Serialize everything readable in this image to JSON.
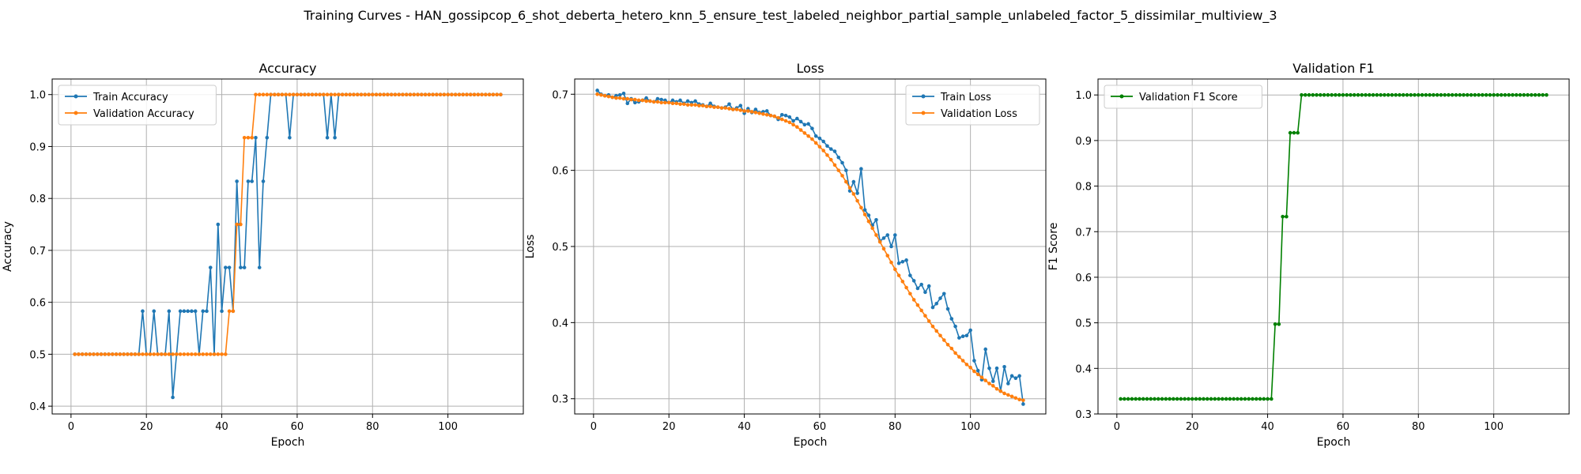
{
  "figure": {
    "suptitle": "Training Curves - HAN_gossipcop_6_shot_deberta_hetero_knn_5_ensure_test_labeled_neighbor_partial_sample_unlabeled_factor_5_dissimilar_multiview_3"
  },
  "colors": {
    "train": "#1f77b4",
    "validation": "#ff7f0e",
    "f1": "#008000",
    "grid": "#b0b0b0"
  },
  "chart_data": [
    {
      "type": "line",
      "title": "Accuracy",
      "xlabel": "Epoch",
      "ylabel": "Accuracy",
      "xlim": [
        -5,
        120
      ],
      "ylim": [
        0.385,
        1.03
      ],
      "xticks": [
        0,
        20,
        40,
        60,
        80,
        100
      ],
      "yticks": [
        0.4,
        0.5,
        0.6,
        0.7,
        0.8,
        0.9,
        1.0
      ],
      "grid": true,
      "legend": "upper-left",
      "x": [
        1,
        2,
        3,
        4,
        5,
        6,
        7,
        8,
        9,
        10,
        11,
        12,
        13,
        14,
        15,
        16,
        17,
        18,
        19,
        20,
        21,
        22,
        23,
        24,
        25,
        26,
        27,
        28,
        29,
        30,
        31,
        32,
        33,
        34,
        35,
        36,
        37,
        38,
        39,
        40,
        41,
        42,
        43,
        44,
        45,
        46,
        47,
        48,
        49,
        50,
        51,
        52,
        53,
        54,
        55,
        56,
        57,
        58,
        59,
        60,
        61,
        62,
        63,
        64,
        65,
        66,
        67,
        68,
        69,
        70,
        71,
        72,
        73,
        74,
        75,
        76,
        77,
        78,
        79,
        80,
        81,
        82,
        83,
        84,
        85,
        86,
        87,
        88,
        89,
        90,
        91,
        92,
        93,
        94,
        95,
        96,
        97,
        98,
        99,
        100,
        101,
        102,
        103,
        104,
        105,
        106,
        107,
        108,
        109,
        110,
        111,
        112,
        113,
        114
      ],
      "series": [
        {
          "name": "Train Accuracy",
          "color": "#1f77b4",
          "values": [
            0.5,
            0.5,
            0.5,
            0.5,
            0.5,
            0.5,
            0.5,
            0.5,
            0.5,
            0.5,
            0.5,
            0.5,
            0.5,
            0.5,
            0.5,
            0.5,
            0.5,
            0.5,
            0.583,
            0.5,
            0.5,
            0.583,
            0.5,
            0.5,
            0.5,
            0.583,
            0.417,
            0.5,
            0.583,
            0.583,
            0.583,
            0.583,
            0.583,
            0.5,
            0.583,
            0.583,
            0.667,
            0.5,
            0.75,
            0.583,
            0.667,
            0.667,
            0.583,
            0.833,
            0.667,
            0.667,
            0.833,
            0.833,
            0.917,
            0.667,
            0.833,
            0.917,
            1.0,
            1.0,
            1.0,
            1.0,
            1.0,
            0.917,
            1.0,
            1.0,
            1.0,
            1.0,
            1.0,
            1.0,
            1.0,
            1.0,
            1.0,
            0.917,
            1.0,
            0.917,
            1.0,
            1.0,
            1.0,
            1.0,
            1.0,
            1.0,
            1.0,
            1.0,
            1.0,
            1.0,
            1.0,
            1.0,
            1.0,
            1.0,
            1.0,
            1.0,
            1.0,
            1.0,
            1.0,
            1.0,
            1.0,
            1.0,
            1.0,
            1.0,
            1.0,
            1.0,
            1.0,
            1.0,
            1.0,
            1.0,
            1.0,
            1.0,
            1.0,
            1.0,
            1.0,
            1.0,
            1.0,
            1.0,
            1.0,
            1.0,
            1.0,
            1.0,
            1.0,
            1.0
          ]
        },
        {
          "name": "Validation Accuracy",
          "color": "#ff7f0e",
          "values": [
            0.5,
            0.5,
            0.5,
            0.5,
            0.5,
            0.5,
            0.5,
            0.5,
            0.5,
            0.5,
            0.5,
            0.5,
            0.5,
            0.5,
            0.5,
            0.5,
            0.5,
            0.5,
            0.5,
            0.5,
            0.5,
            0.5,
            0.5,
            0.5,
            0.5,
            0.5,
            0.5,
            0.5,
            0.5,
            0.5,
            0.5,
            0.5,
            0.5,
            0.5,
            0.5,
            0.5,
            0.5,
            0.5,
            0.5,
            0.5,
            0.5,
            0.583,
            0.583,
            0.75,
            0.75,
            0.917,
            0.917,
            0.917,
            1.0,
            1.0,
            1.0,
            1.0,
            1.0,
            1.0,
            1.0,
            1.0,
            1.0,
            1.0,
            1.0,
            1.0,
            1.0,
            1.0,
            1.0,
            1.0,
            1.0,
            1.0,
            1.0,
            1.0,
            1.0,
            1.0,
            1.0,
            1.0,
            1.0,
            1.0,
            1.0,
            1.0,
            1.0,
            1.0,
            1.0,
            1.0,
            1.0,
            1.0,
            1.0,
            1.0,
            1.0,
            1.0,
            1.0,
            1.0,
            1.0,
            1.0,
            1.0,
            1.0,
            1.0,
            1.0,
            1.0,
            1.0,
            1.0,
            1.0,
            1.0,
            1.0,
            1.0,
            1.0,
            1.0,
            1.0,
            1.0,
            1.0,
            1.0,
            1.0,
            1.0,
            1.0,
            1.0,
            1.0,
            1.0,
            1.0
          ]
        }
      ]
    },
    {
      "type": "line",
      "title": "Loss",
      "xlabel": "Epoch",
      "ylabel": "Loss",
      "xlim": [
        -5,
        120
      ],
      "ylim": [
        0.28,
        0.72
      ],
      "xticks": [
        0,
        20,
        40,
        60,
        80,
        100
      ],
      "yticks": [
        0.3,
        0.4,
        0.5,
        0.6,
        0.7
      ],
      "grid": true,
      "legend": "upper-right",
      "x": [
        1,
        2,
        3,
        4,
        5,
        6,
        7,
        8,
        9,
        10,
        11,
        12,
        13,
        14,
        15,
        16,
        17,
        18,
        19,
        20,
        21,
        22,
        23,
        24,
        25,
        26,
        27,
        28,
        29,
        30,
        31,
        32,
        33,
        34,
        35,
        36,
        37,
        38,
        39,
        40,
        41,
        42,
        43,
        44,
        45,
        46,
        47,
        48,
        49,
        50,
        51,
        52,
        53,
        54,
        55,
        56,
        57,
        58,
        59,
        60,
        61,
        62,
        63,
        64,
        65,
        66,
        67,
        68,
        69,
        70,
        71,
        72,
        73,
        74,
        75,
        76,
        77,
        78,
        79,
        80,
        81,
        82,
        83,
        84,
        85,
        86,
        87,
        88,
        89,
        90,
        91,
        92,
        93,
        94,
        95,
        96,
        97,
        98,
        99,
        100,
        101,
        102,
        103,
        104,
        105,
        106,
        107,
        108,
        109,
        110,
        111,
        112,
        113,
        114
      ],
      "series": [
        {
          "name": "Train Loss",
          "color": "#1f77b4",
          "values": [
            0.705,
            0.7,
            0.698,
            0.699,
            0.696,
            0.698,
            0.699,
            0.701,
            0.688,
            0.694,
            0.689,
            0.69,
            0.692,
            0.695,
            0.691,
            0.69,
            0.694,
            0.693,
            0.692,
            0.689,
            0.692,
            0.69,
            0.692,
            0.688,
            0.691,
            0.689,
            0.691,
            0.687,
            0.686,
            0.684,
            0.688,
            0.684,
            0.683,
            0.682,
            0.683,
            0.687,
            0.68,
            0.682,
            0.685,
            0.675,
            0.681,
            0.676,
            0.68,
            0.676,
            0.677,
            0.678,
            0.672,
            0.671,
            0.667,
            0.673,
            0.672,
            0.67,
            0.665,
            0.668,
            0.664,
            0.66,
            0.661,
            0.655,
            0.645,
            0.642,
            0.638,
            0.632,
            0.628,
            0.625,
            0.617,
            0.61,
            0.6,
            0.573,
            0.585,
            0.57,
            0.602,
            0.548,
            0.541,
            0.528,
            0.535,
            0.507,
            0.511,
            0.515,
            0.5,
            0.515,
            0.478,
            0.48,
            0.482,
            0.462,
            0.455,
            0.445,
            0.45,
            0.44,
            0.448,
            0.42,
            0.425,
            0.432,
            0.438,
            0.418,
            0.405,
            0.395,
            0.38,
            0.382,
            0.383,
            0.39,
            0.35,
            0.337,
            0.325,
            0.365,
            0.34,
            0.323,
            0.34,
            0.31,
            0.342,
            0.32,
            0.33,
            0.327,
            0.33,
            0.293
          ]
        },
        {
          "name": "Validation Loss",
          "color": "#ff7f0e",
          "values": [
            0.7,
            0.699,
            0.698,
            0.697,
            0.696,
            0.695,
            0.695,
            0.694,
            0.694,
            0.693,
            0.693,
            0.692,
            0.692,
            0.691,
            0.691,
            0.69,
            0.69,
            0.689,
            0.689,
            0.689,
            0.688,
            0.688,
            0.687,
            0.687,
            0.686,
            0.686,
            0.686,
            0.685,
            0.685,
            0.684,
            0.684,
            0.683,
            0.683,
            0.682,
            0.682,
            0.681,
            0.68,
            0.68,
            0.679,
            0.678,
            0.678,
            0.677,
            0.676,
            0.675,
            0.674,
            0.673,
            0.672,
            0.671,
            0.669,
            0.667,
            0.665,
            0.663,
            0.66,
            0.657,
            0.653,
            0.649,
            0.645,
            0.641,
            0.636,
            0.631,
            0.626,
            0.62,
            0.614,
            0.607,
            0.6,
            0.593,
            0.585,
            0.577,
            0.569,
            0.56,
            0.551,
            0.542,
            0.533,
            0.524,
            0.515,
            0.506,
            0.497,
            0.488,
            0.479,
            0.47,
            0.462,
            0.454,
            0.446,
            0.438,
            0.43,
            0.423,
            0.416,
            0.409,
            0.402,
            0.395,
            0.389,
            0.383,
            0.377,
            0.371,
            0.366,
            0.36,
            0.355,
            0.35,
            0.345,
            0.341,
            0.336,
            0.332,
            0.328,
            0.324,
            0.32,
            0.317,
            0.313,
            0.31,
            0.307,
            0.305,
            0.303,
            0.301,
            0.299,
            0.298
          ]
        }
      ]
    },
    {
      "type": "line",
      "title": "Validation F1",
      "xlabel": "Epoch",
      "ylabel": "F1 Score",
      "xlim": [
        -5,
        120
      ],
      "ylim": [
        0.3,
        1.035
      ],
      "xticks": [
        0,
        20,
        40,
        60,
        80,
        100
      ],
      "yticks": [
        0.3,
        0.4,
        0.5,
        0.6,
        0.7,
        0.8,
        0.9,
        1.0
      ],
      "grid": true,
      "legend": "upper-left",
      "x": [
        1,
        2,
        3,
        4,
        5,
        6,
        7,
        8,
        9,
        10,
        11,
        12,
        13,
        14,
        15,
        16,
        17,
        18,
        19,
        20,
        21,
        22,
        23,
        24,
        25,
        26,
        27,
        28,
        29,
        30,
        31,
        32,
        33,
        34,
        35,
        36,
        37,
        38,
        39,
        40,
        41,
        42,
        43,
        44,
        45,
        46,
        47,
        48,
        49,
        50,
        51,
        52,
        53,
        54,
        55,
        56,
        57,
        58,
        59,
        60,
        61,
        62,
        63,
        64,
        65,
        66,
        67,
        68,
        69,
        70,
        71,
        72,
        73,
        74,
        75,
        76,
        77,
        78,
        79,
        80,
        81,
        82,
        83,
        84,
        85,
        86,
        87,
        88,
        89,
        90,
        91,
        92,
        93,
        94,
        95,
        96,
        97,
        98,
        99,
        100,
        101,
        102,
        103,
        104,
        105,
        106,
        107,
        108,
        109,
        110,
        111,
        112,
        113,
        114
      ],
      "series": [
        {
          "name": "Validation F1 Score",
          "color": "#008000",
          "values": [
            0.333,
            0.333,
            0.333,
            0.333,
            0.333,
            0.333,
            0.333,
            0.333,
            0.333,
            0.333,
            0.333,
            0.333,
            0.333,
            0.333,
            0.333,
            0.333,
            0.333,
            0.333,
            0.333,
            0.333,
            0.333,
            0.333,
            0.333,
            0.333,
            0.333,
            0.333,
            0.333,
            0.333,
            0.333,
            0.333,
            0.333,
            0.333,
            0.333,
            0.333,
            0.333,
            0.333,
            0.333,
            0.333,
            0.333,
            0.333,
            0.333,
            0.497,
            0.497,
            0.733,
            0.733,
            0.917,
            0.917,
            0.917,
            1.0,
            1.0,
            1.0,
            1.0,
            1.0,
            1.0,
            1.0,
            1.0,
            1.0,
            1.0,
            1.0,
            1.0,
            1.0,
            1.0,
            1.0,
            1.0,
            1.0,
            1.0,
            1.0,
            1.0,
            1.0,
            1.0,
            1.0,
            1.0,
            1.0,
            1.0,
            1.0,
            1.0,
            1.0,
            1.0,
            1.0,
            1.0,
            1.0,
            1.0,
            1.0,
            1.0,
            1.0,
            1.0,
            1.0,
            1.0,
            1.0,
            1.0,
            1.0,
            1.0,
            1.0,
            1.0,
            1.0,
            1.0,
            1.0,
            1.0,
            1.0,
            1.0,
            1.0,
            1.0,
            1.0,
            1.0,
            1.0,
            1.0,
            1.0,
            1.0,
            1.0,
            1.0,
            1.0,
            1.0,
            1.0,
            1.0
          ]
        }
      ]
    }
  ]
}
